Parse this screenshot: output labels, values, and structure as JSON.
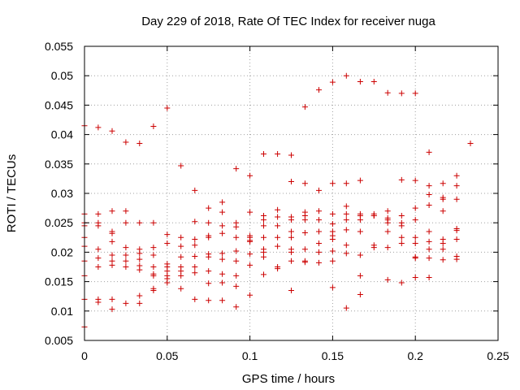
{
  "chart_data": {
    "type": "scatter",
    "title": "Day 229 of 2018, Rate Of TEC Index for receiver nuga",
    "xlabel": "GPS time / hours",
    "ylabel": "ROTI / TECUs",
    "xlim": [
      0,
      0.25
    ],
    "ylim": [
      0.005,
      0.055
    ],
    "grid": true,
    "marker": "+",
    "color": "#cc0000",
    "x_ticks": [
      {
        "value": 0,
        "label": "0"
      },
      {
        "value": 0.05,
        "label": "0.05"
      },
      {
        "value": 0.1,
        "label": "0.1"
      },
      {
        "value": 0.15,
        "label": "0.15"
      },
      {
        "value": 0.2,
        "label": "0.2"
      },
      {
        "value": 0.25,
        "label": "0.25"
      }
    ],
    "y_ticks": [
      {
        "value": 0.005,
        "label": "0.005"
      },
      {
        "value": 0.01,
        "label": "0.01"
      },
      {
        "value": 0.015,
        "label": "0.015"
      },
      {
        "value": 0.02,
        "label": "0.02"
      },
      {
        "value": 0.025,
        "label": "0.025"
      },
      {
        "value": 0.03,
        "label": "0.03"
      },
      {
        "value": 0.035,
        "label": "0.035"
      },
      {
        "value": 0.04,
        "label": "0.04"
      },
      {
        "value": 0.045,
        "label": "0.045"
      },
      {
        "value": 0.05,
        "label": "0.05"
      },
      {
        "value": 0.055,
        "label": "0.055"
      }
    ],
    "series": [
      {
        "name": "ROTI",
        "points": [
          [
            0.0,
            0.0415
          ],
          [
            0.0,
            0.0265
          ],
          [
            0.0,
            0.025
          ],
          [
            0.0,
            0.0245
          ],
          [
            0.0,
            0.0225
          ],
          [
            0.0,
            0.021
          ],
          [
            0.0,
            0.0185
          ],
          [
            0.0,
            0.016
          ],
          [
            0.0,
            0.012
          ],
          [
            0.0,
            0.0073
          ],
          [
            0.0083,
            0.0412
          ],
          [
            0.0083,
            0.0265
          ],
          [
            0.0083,
            0.025
          ],
          [
            0.0083,
            0.0245
          ],
          [
            0.0083,
            0.0205
          ],
          [
            0.0083,
            0.019
          ],
          [
            0.0083,
            0.0175
          ],
          [
            0.0083,
            0.012
          ],
          [
            0.0083,
            0.0115
          ],
          [
            0.0167,
            0.0406
          ],
          [
            0.0167,
            0.027
          ],
          [
            0.0167,
            0.0235
          ],
          [
            0.0167,
            0.0232
          ],
          [
            0.0167,
            0.0218
          ],
          [
            0.0167,
            0.0195
          ],
          [
            0.0167,
            0.0185
          ],
          [
            0.0167,
            0.0178
          ],
          [
            0.0167,
            0.012
          ],
          [
            0.0167,
            0.0103
          ],
          [
            0.025,
            0.0387
          ],
          [
            0.025,
            0.027
          ],
          [
            0.025,
            0.025
          ],
          [
            0.025,
            0.0208
          ],
          [
            0.025,
            0.0195
          ],
          [
            0.025,
            0.0185
          ],
          [
            0.025,
            0.0175
          ],
          [
            0.025,
            0.0113
          ],
          [
            0.0333,
            0.0385
          ],
          [
            0.0333,
            0.025
          ],
          [
            0.0333,
            0.0205
          ],
          [
            0.0333,
            0.0198
          ],
          [
            0.0333,
            0.0188
          ],
          [
            0.0333,
            0.0177
          ],
          [
            0.0333,
            0.017
          ],
          [
            0.0333,
            0.0126
          ],
          [
            0.0333,
            0.0113
          ],
          [
            0.0417,
            0.0414
          ],
          [
            0.0417,
            0.025
          ],
          [
            0.0417,
            0.0208
          ],
          [
            0.0417,
            0.0195
          ],
          [
            0.0417,
            0.0175
          ],
          [
            0.0417,
            0.0163
          ],
          [
            0.0417,
            0.016
          ],
          [
            0.0417,
            0.0138
          ],
          [
            0.0417,
            0.0135
          ],
          [
            0.05,
            0.0445
          ],
          [
            0.05,
            0.023
          ],
          [
            0.05,
            0.0215
          ],
          [
            0.05,
            0.018
          ],
          [
            0.05,
            0.0175
          ],
          [
            0.05,
            0.0168
          ],
          [
            0.05,
            0.016
          ],
          [
            0.05,
            0.0155
          ],
          [
            0.05,
            0.0148
          ],
          [
            0.0583,
            0.0347
          ],
          [
            0.0583,
            0.0225
          ],
          [
            0.0583,
            0.021
          ],
          [
            0.0583,
            0.0192
          ],
          [
            0.0583,
            0.0175
          ],
          [
            0.0583,
            0.0168
          ],
          [
            0.0583,
            0.016
          ],
          [
            0.0583,
            0.0138
          ],
          [
            0.0667,
            0.0305
          ],
          [
            0.0667,
            0.0252
          ],
          [
            0.0667,
            0.0222
          ],
          [
            0.0667,
            0.0212
          ],
          [
            0.0667,
            0.0193
          ],
          [
            0.0667,
            0.0175
          ],
          [
            0.0667,
            0.0165
          ],
          [
            0.0667,
            0.012
          ],
          [
            0.075,
            0.0275
          ],
          [
            0.075,
            0.025
          ],
          [
            0.075,
            0.0228
          ],
          [
            0.075,
            0.0225
          ],
          [
            0.075,
            0.0197
          ],
          [
            0.075,
            0.0192
          ],
          [
            0.075,
            0.0168
          ],
          [
            0.075,
            0.0147
          ],
          [
            0.075,
            0.0118
          ],
          [
            0.0833,
            0.0285
          ],
          [
            0.0833,
            0.0268
          ],
          [
            0.0833,
            0.0245
          ],
          [
            0.0833,
            0.0232
          ],
          [
            0.0833,
            0.0198
          ],
          [
            0.0833,
            0.0188
          ],
          [
            0.0833,
            0.0163
          ],
          [
            0.0833,
            0.0148
          ],
          [
            0.0833,
            0.0118
          ],
          [
            0.0917,
            0.0342
          ],
          [
            0.0917,
            0.025
          ],
          [
            0.0917,
            0.0243
          ],
          [
            0.0917,
            0.0225
          ],
          [
            0.0917,
            0.0202
          ],
          [
            0.0917,
            0.0185
          ],
          [
            0.0917,
            0.016
          ],
          [
            0.0917,
            0.0142
          ],
          [
            0.0917,
            0.0107
          ],
          [
            0.1,
            0.033
          ],
          [
            0.1,
            0.0268
          ],
          [
            0.1,
            0.0228
          ],
          [
            0.1,
            0.0225
          ],
          [
            0.1,
            0.022
          ],
          [
            0.1,
            0.0218
          ],
          [
            0.1,
            0.0197
          ],
          [
            0.1,
            0.0178
          ],
          [
            0.1,
            0.0127
          ],
          [
            0.1083,
            0.0367
          ],
          [
            0.1083,
            0.0262
          ],
          [
            0.1083,
            0.0255
          ],
          [
            0.1083,
            0.0245
          ],
          [
            0.1083,
            0.0225
          ],
          [
            0.1083,
            0.0205
          ],
          [
            0.1083,
            0.02
          ],
          [
            0.1083,
            0.0192
          ],
          [
            0.1083,
            0.0162
          ],
          [
            0.1167,
            0.0367
          ],
          [
            0.1167,
            0.0272
          ],
          [
            0.1167,
            0.026
          ],
          [
            0.1167,
            0.0245
          ],
          [
            0.1167,
            0.0225
          ],
          [
            0.1167,
            0.021
          ],
          [
            0.1167,
            0.0175
          ],
          [
            0.1167,
            0.0172
          ],
          [
            0.125,
            0.0365
          ],
          [
            0.125,
            0.032
          ],
          [
            0.125,
            0.026
          ],
          [
            0.125,
            0.0255
          ],
          [
            0.125,
            0.0235
          ],
          [
            0.125,
            0.0225
          ],
          [
            0.125,
            0.0205
          ],
          [
            0.125,
            0.02
          ],
          [
            0.125,
            0.0185
          ],
          [
            0.125,
            0.0135
          ],
          [
            0.1333,
            0.0447
          ],
          [
            0.1333,
            0.0317
          ],
          [
            0.1333,
            0.0268
          ],
          [
            0.1333,
            0.0262
          ],
          [
            0.1333,
            0.0255
          ],
          [
            0.1333,
            0.0233
          ],
          [
            0.1333,
            0.0205
          ],
          [
            0.1333,
            0.0185
          ],
          [
            0.1333,
            0.0183
          ],
          [
            0.1417,
            0.0476
          ],
          [
            0.1417,
            0.0305
          ],
          [
            0.1417,
            0.027
          ],
          [
            0.1417,
            0.0255
          ],
          [
            0.1417,
            0.0235
          ],
          [
            0.1417,
            0.0215
          ],
          [
            0.1417,
            0.02
          ],
          [
            0.1417,
            0.0182
          ],
          [
            0.15,
            0.0489
          ],
          [
            0.15,
            0.0317
          ],
          [
            0.15,
            0.0265
          ],
          [
            0.15,
            0.0248
          ],
          [
            0.15,
            0.0235
          ],
          [
            0.15,
            0.0228
          ],
          [
            0.15,
            0.0222
          ],
          [
            0.15,
            0.0202
          ],
          [
            0.15,
            0.0185
          ],
          [
            0.15,
            0.014
          ],
          [
            0.1583,
            0.05
          ],
          [
            0.1583,
            0.0317
          ],
          [
            0.1583,
            0.0278
          ],
          [
            0.1583,
            0.0265
          ],
          [
            0.1583,
            0.0255
          ],
          [
            0.1583,
            0.0238
          ],
          [
            0.1583,
            0.0212
          ],
          [
            0.1583,
            0.0198
          ],
          [
            0.1583,
            0.0105
          ],
          [
            0.1667,
            0.049
          ],
          [
            0.1667,
            0.0322
          ],
          [
            0.1667,
            0.0265
          ],
          [
            0.1667,
            0.0262
          ],
          [
            0.1667,
            0.0255
          ],
          [
            0.1667,
            0.0235
          ],
          [
            0.1667,
            0.0195
          ],
          [
            0.1667,
            0.016
          ],
          [
            0.1667,
            0.0128
          ],
          [
            0.175,
            0.049
          ],
          [
            0.175,
            0.0265
          ],
          [
            0.175,
            0.0262
          ],
          [
            0.175,
            0.0262
          ],
          [
            0.175,
            0.0212
          ],
          [
            0.175,
            0.0208
          ],
          [
            0.1833,
            0.0471
          ],
          [
            0.1833,
            0.027
          ],
          [
            0.1833,
            0.0258
          ],
          [
            0.1833,
            0.0255
          ],
          [
            0.1833,
            0.025
          ],
          [
            0.1833,
            0.0235
          ],
          [
            0.1833,
            0.0208
          ],
          [
            0.1833,
            0.0153
          ],
          [
            0.1917,
            0.047
          ],
          [
            0.1917,
            0.0323
          ],
          [
            0.1917,
            0.0262
          ],
          [
            0.1917,
            0.025
          ],
          [
            0.1917,
            0.0245
          ],
          [
            0.1917,
            0.0225
          ],
          [
            0.1917,
            0.0215
          ],
          [
            0.1917,
            0.0148
          ],
          [
            0.2,
            0.047
          ],
          [
            0.2,
            0.0322
          ],
          [
            0.2,
            0.0275
          ],
          [
            0.2,
            0.0255
          ],
          [
            0.2,
            0.0225
          ],
          [
            0.2,
            0.0215
          ],
          [
            0.2,
            0.0192
          ],
          [
            0.2,
            0.019
          ],
          [
            0.2,
            0.0157
          ],
          [
            0.2083,
            0.037
          ],
          [
            0.2083,
            0.0313
          ],
          [
            0.2083,
            0.0298
          ],
          [
            0.2083,
            0.028
          ],
          [
            0.2083,
            0.0235
          ],
          [
            0.2083,
            0.0218
          ],
          [
            0.2083,
            0.0205
          ],
          [
            0.2083,
            0.019
          ],
          [
            0.2083,
            0.0157
          ],
          [
            0.2167,
            0.0317
          ],
          [
            0.2167,
            0.0293
          ],
          [
            0.2167,
            0.029
          ],
          [
            0.2167,
            0.027
          ],
          [
            0.2167,
            0.0222
          ],
          [
            0.2167,
            0.0215
          ],
          [
            0.2167,
            0.0205
          ],
          [
            0.2167,
            0.0187
          ],
          [
            0.225,
            0.033
          ],
          [
            0.225,
            0.0313
          ],
          [
            0.225,
            0.029
          ],
          [
            0.225,
            0.024
          ],
          [
            0.225,
            0.0237
          ],
          [
            0.225,
            0.0222
          ],
          [
            0.225,
            0.0193
          ],
          [
            0.225,
            0.0188
          ],
          [
            0.2333,
            0.0385
          ]
        ]
      }
    ]
  }
}
